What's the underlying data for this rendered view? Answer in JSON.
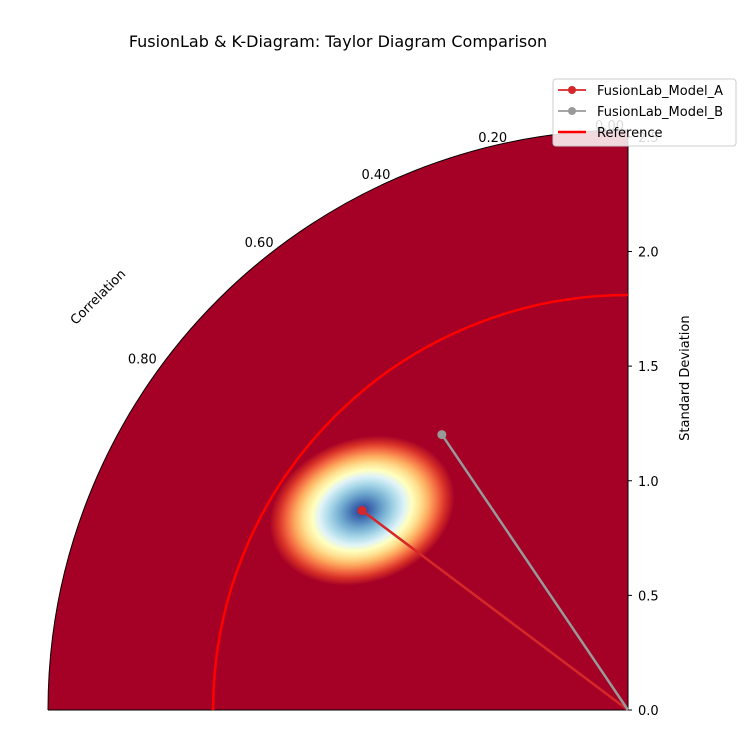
{
  "chart_data": {
    "type": "scatter",
    "title": "FusionLab & K-Diagram: Taylor Diagram Comparison",
    "radial_label": "Standard Deviation",
    "angular_label": "Correlation",
    "radial_ticks": [
      0.0,
      0.5,
      1.0,
      1.5,
      2.0,
      2.5
    ],
    "radial_tick_labels": [
      "0.0",
      "0.5",
      "1.0",
      "1.5",
      "2.0",
      "2.5"
    ],
    "corr_ticks": [
      0.0,
      0.2,
      0.4,
      0.6,
      0.8
    ],
    "corr_tick_labels": [
      "0.00",
      "0.20",
      "0.40",
      "0.60",
      "0.80"
    ],
    "rlim": [
      0,
      2.53
    ],
    "reference_std": 1.81,
    "background": {
      "colormap": "RdYlBu",
      "peak_std": 1.45,
      "peak_correlation": 0.8,
      "low_color": "#a50026",
      "high_color": "#313695"
    },
    "series": [
      {
        "name": "FusionLab_Model_A",
        "std": 1.45,
        "correlation": 0.8,
        "color": "#d62728"
      },
      {
        "name": "FusionLab_Model_B",
        "std": 1.45,
        "correlation": 0.56,
        "color": "#999999"
      }
    ],
    "reference": {
      "name": "Reference",
      "color": "#ff0000"
    },
    "legend_position": "top-right",
    "grid": false
  }
}
